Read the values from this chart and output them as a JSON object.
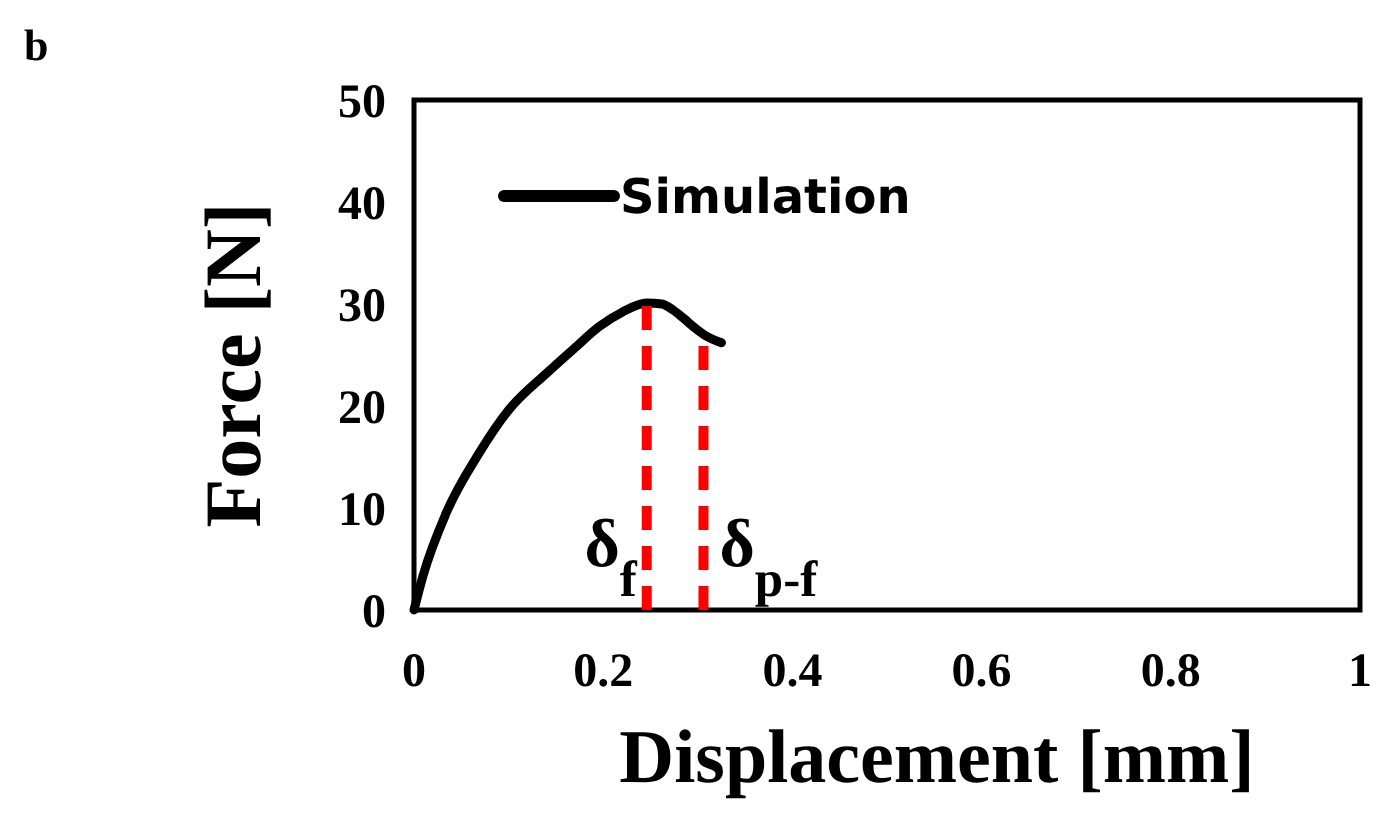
{
  "chart_data": {
    "type": "line",
    "xlabel": "Displacement [mm]",
    "ylabel": "Force [N]",
    "xlim": [
      0,
      1
    ],
    "ylim": [
      0,
      50
    ],
    "xticks": [
      0,
      0.2,
      0.4,
      0.6,
      0.8,
      1
    ],
    "yticks": [
      0,
      10,
      20,
      30,
      40,
      50
    ],
    "grid": false,
    "legend": "top left",
    "marker": "none",
    "line_style": "solid",
    "series": [
      {
        "name": "Simulation",
        "color": "#000000",
        "x": [
          0,
          0.01,
          0.034,
          0.069,
          0.1,
          0.14,
          0.17,
          0.196,
          0.22,
          0.246,
          0.262,
          0.274,
          0.285,
          0.295,
          0.31,
          0.325
        ],
        "values": [
          0,
          3.5,
          9.5,
          15.4,
          19.6,
          23.2,
          25.7,
          27.8,
          29.2,
          30.1,
          30.0,
          29.4,
          28.6,
          27.8,
          26.8,
          26.2
        ]
      }
    ],
    "ref_lines": [
      {
        "axis": "x",
        "value": 0.246,
        "label": "δ$_{f}$",
        "color": "#ff0000",
        "line_style": "dashed"
      },
      {
        "axis": "x",
        "value": 0.306,
        "label": "δ$_{p-f}$",
        "color": "#ff0000",
        "line_style": "dashed"
      }
    ],
    "annotations": [
      "b"
    ]
  }
}
